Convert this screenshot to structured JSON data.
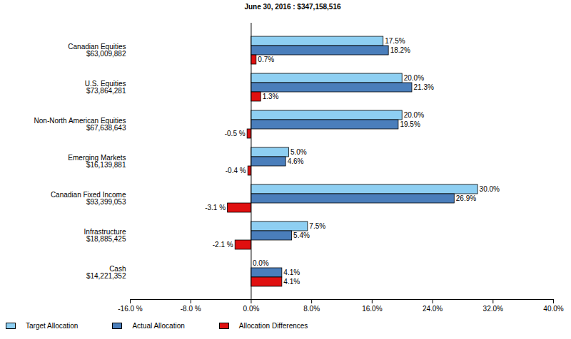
{
  "chart_data": {
    "type": "bar",
    "orientation": "horizontal",
    "title": "June 30, 2016 : $347,158,516",
    "categories": [
      "Canadian Equities\n$63,009,882",
      "U.S. Equities\n$73,864,281",
      "Non-North American Equities\n$67,638,643",
      "Emerging Markets\n$16,139,881",
      "Canadian Fixed Income\n$93,399,053",
      "Infrastructure\n$18,885,425",
      "Cash\n$14,221,352"
    ],
    "series": [
      {
        "name": "Target Allocation",
        "color": "#8ecff2",
        "values": [
          17.5,
          20.0,
          20.0,
          5.0,
          30.0,
          7.5,
          0.0
        ],
        "value_labels": [
          "17.5%",
          "20.0%",
          "20.0%",
          "5.0%",
          "30.0%",
          "7.5%",
          "0.0%"
        ]
      },
      {
        "name": "Actual Allocation",
        "color": "#4a7ebb",
        "values": [
          18.2,
          21.3,
          19.5,
          4.6,
          26.9,
          5.4,
          4.1
        ],
        "value_labels": [
          "18.2%",
          "21.3%",
          "19.5%",
          "4.6%",
          "26.9%",
          "5.4%",
          "4.1%"
        ]
      },
      {
        "name": "Allocation Differences",
        "color": "#e01010",
        "values": [
          0.7,
          1.3,
          -0.5,
          -0.4,
          -3.1,
          -2.1,
          4.1
        ],
        "value_labels": [
          "0.7%",
          "1.3%",
          "-0.5 %",
          "-0.4 %",
          "-3.1 %",
          "-2.1 %",
          "4.1%"
        ]
      }
    ],
    "xlim": [
      -16,
      40
    ],
    "xticks": [
      {
        "value": -16,
        "label": "-16.0 %"
      },
      {
        "value": -8,
        "label": "-8.0 %"
      },
      {
        "value": 0,
        "label": "0.0%"
      },
      {
        "value": 8,
        "label": "8.0%"
      },
      {
        "value": 16,
        "label": "16.0%"
      },
      {
        "value": 24,
        "label": "24.0%"
      },
      {
        "value": 32,
        "label": "32.0%"
      },
      {
        "value": 40,
        "label": "40.0%"
      }
    ],
    "data_labels": true,
    "legend": "bottom",
    "grid": false
  }
}
